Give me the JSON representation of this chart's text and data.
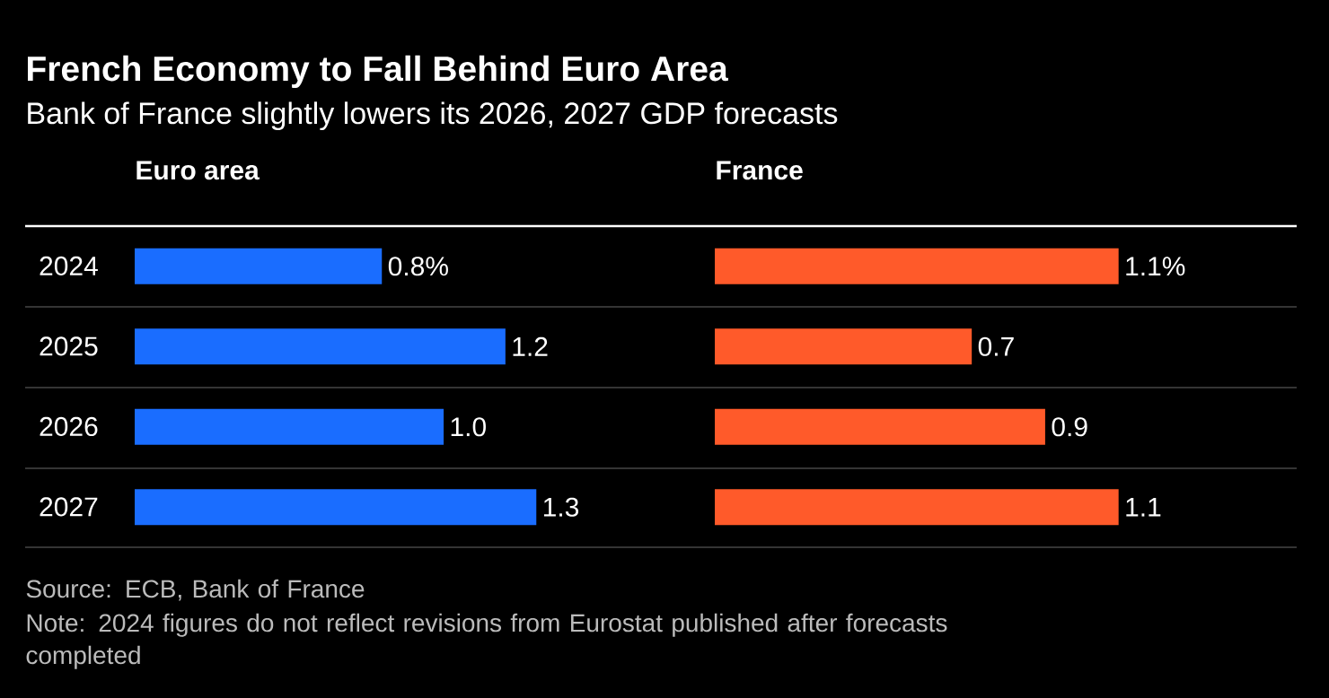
{
  "chart_data": [
    {
      "type": "other",
      "title": "French Economy to Fall Behind Euro Area",
      "subtitle": "Bank of France slightly lowers its 2026, 2027 GDP forecasts",
      "annotations": [
        "Source: ECB, Bank of France",
        "Note: 2024 figures do not reflect revisions from Eurostat published after forecasts completed"
      ]
    },
    {
      "type": "bar",
      "orientation": "horizontal",
      "title": "Euro area",
      "categories": [
        "2024",
        "2025",
        "2026",
        "2027"
      ],
      "tick_labels": "y",
      "series": [
        {
          "color": "#1a6dff",
          "values": [
            0.8,
            1.2,
            1.0,
            1.3
          ],
          "value_labels": [
            "0.8%",
            "1.2",
            "1.0",
            "1.3"
          ]
        }
      ]
    },
    {
      "type": "bar",
      "orientation": "horizontal",
      "title": "France",
      "categories": [
        "2024",
        "2025",
        "2026",
        "2027"
      ],
      "tick_labels": false,
      "series": [
        {
          "color": "#ff5a2a",
          "values": [
            1.1,
            0.7,
            0.9,
            1.1
          ],
          "value_labels": [
            "1.1%",
            "0.7",
            "0.9",
            "1.1"
          ]
        }
      ]
    }
  ]
}
